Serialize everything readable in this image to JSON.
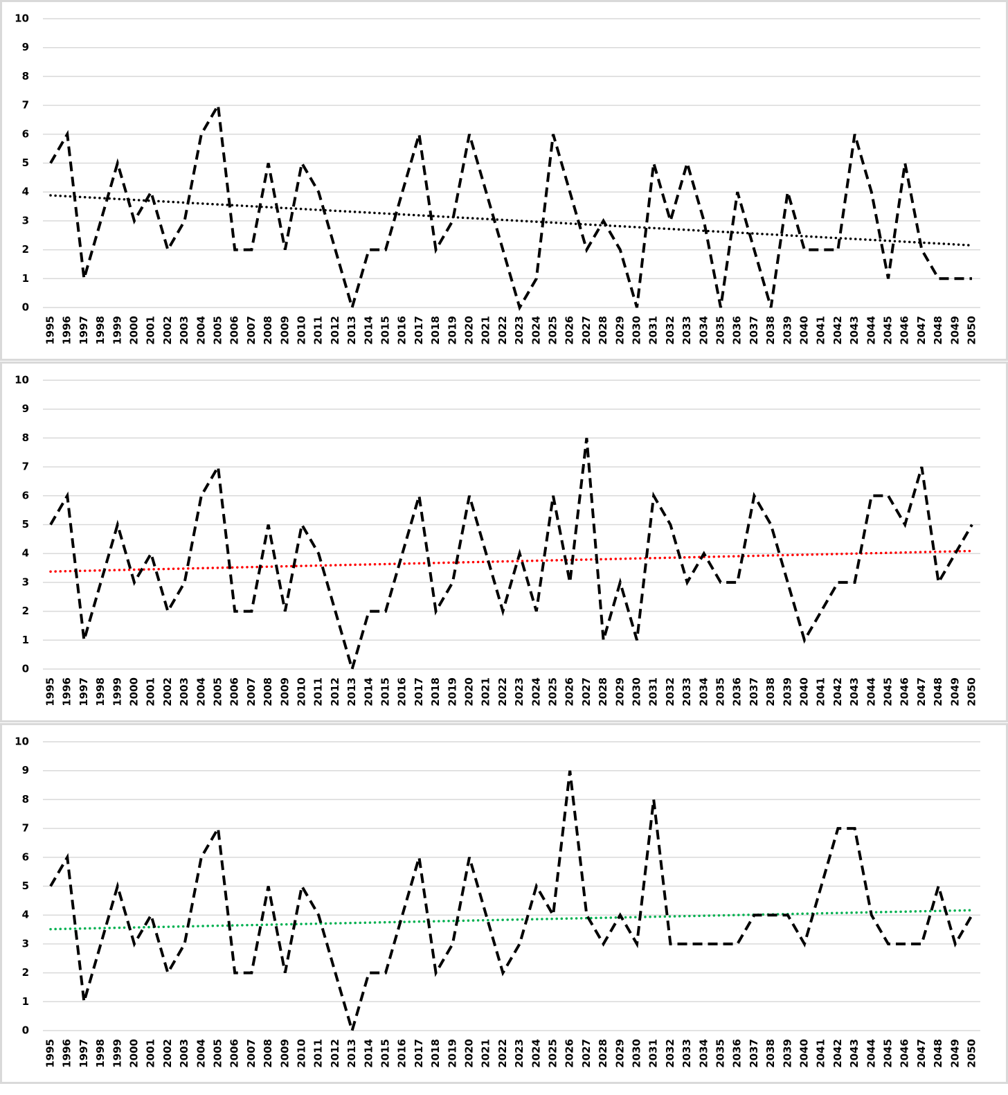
{
  "chart_data": [
    {
      "type": "line",
      "categories": [
        "1995",
        "1996",
        "1997",
        "1998",
        "1999",
        "2000",
        "2001",
        "2002",
        "2003",
        "2004",
        "2005",
        "2006",
        "2007",
        "2008",
        "2009",
        "2010",
        "2011",
        "2012",
        "2013",
        "2014",
        "2015",
        "2016",
        "2017",
        "2018",
        "2019",
        "2020",
        "2021",
        "2022",
        "2023",
        "2024",
        "2025",
        "2026",
        "2027",
        "2028",
        "2029",
        "2030",
        "2031",
        "2032",
        "2033",
        "2034",
        "2035",
        "2036",
        "2037",
        "2038",
        "2039",
        "2040",
        "2041",
        "2042",
        "2043",
        "2044",
        "2045",
        "2046",
        "2047",
        "2048",
        "2049",
        "2050"
      ],
      "series": [
        {
          "color": "#000000",
          "values": [
            5,
            6,
            1,
            3,
            5,
            3,
            4,
            2,
            3,
            6,
            7,
            2,
            2,
            5,
            2,
            5,
            4,
            2,
            0,
            2,
            2,
            4,
            6,
            2,
            3,
            6,
            4,
            2,
            0,
            1,
            6,
            4,
            2,
            3,
            2,
            0,
            5,
            3,
            5,
            3,
            0,
            4,
            2,
            0,
            4,
            2,
            2,
            2,
            6,
            4,
            1,
            5,
            2,
            1,
            1,
            1
          ]
        }
      ],
      "trendline": {
        "type": "linear",
        "color": "#000000"
      },
      "ylim": [
        0,
        10
      ],
      "yticks": [
        0,
        1,
        2,
        3,
        4,
        5,
        6,
        7,
        8,
        9,
        10
      ],
      "grid": true
    },
    {
      "type": "line",
      "categories": [
        "1995",
        "1996",
        "1997",
        "1998",
        "1999",
        "2000",
        "2001",
        "2002",
        "2003",
        "2004",
        "2005",
        "2006",
        "2007",
        "2008",
        "2009",
        "2010",
        "2011",
        "2012",
        "2013",
        "2014",
        "2015",
        "2016",
        "2017",
        "2018",
        "2019",
        "2020",
        "2021",
        "2022",
        "2023",
        "2024",
        "2025",
        "2026",
        "2027",
        "2028",
        "2029",
        "2030",
        "2031",
        "2032",
        "2033",
        "2034",
        "2035",
        "2036",
        "2037",
        "2038",
        "2039",
        "2040",
        "2041",
        "2042",
        "2043",
        "2044",
        "2045",
        "2046",
        "2047",
        "2048",
        "2049",
        "2050"
      ],
      "series": [
        {
          "color": "#000000",
          "values": [
            5,
            6,
            1,
            3,
            5,
            3,
            4,
            2,
            3,
            6,
            7,
            2,
            2,
            5,
            2,
            5,
            4,
            2,
            0,
            2,
            2,
            4,
            6,
            2,
            3,
            6,
            4,
            2,
            4,
            2,
            6,
            3,
            8,
            1,
            3,
            1,
            6,
            5,
            3,
            4,
            3,
            3,
            6,
            5,
            3,
            1,
            2,
            3,
            3,
            6,
            6,
            5,
            7,
            3,
            4,
            5
          ]
        }
      ],
      "trendline": {
        "type": "linear",
        "color": "#ff0000"
      },
      "ylim": [
        0,
        10
      ],
      "yticks": [
        0,
        1,
        2,
        3,
        4,
        5,
        6,
        7,
        8,
        9,
        10
      ],
      "grid": true
    },
    {
      "type": "line",
      "categories": [
        "1995",
        "1996",
        "1997",
        "1998",
        "1999",
        "2000",
        "2001",
        "2002",
        "2003",
        "2004",
        "2005",
        "2006",
        "2007",
        "2008",
        "2009",
        "2010",
        "2011",
        "2012",
        "2013",
        "2014",
        "2015",
        "2016",
        "2017",
        "2018",
        "2019",
        "2020",
        "2021",
        "2022",
        "2023",
        "2024",
        "2025",
        "2026",
        "2027",
        "2028",
        "2029",
        "2030",
        "2031",
        "2032",
        "2033",
        "2034",
        "2035",
        "2036",
        "2037",
        "2038",
        "2039",
        "2040",
        "2041",
        "2042",
        "2043",
        "2044",
        "2045",
        "2046",
        "2047",
        "2048",
        "2049",
        "2050"
      ],
      "series": [
        {
          "color": "#000000",
          "values": [
            5,
            6,
            1,
            3,
            5,
            3,
            4,
            2,
            3,
            6,
            7,
            2,
            2,
            5,
            2,
            5,
            4,
            2,
            0,
            2,
            2,
            4,
            6,
            2,
            3,
            6,
            4,
            2,
            3,
            5,
            4,
            9,
            4,
            3,
            4,
            3,
            8,
            3,
            3,
            3,
            3,
            3,
            4,
            4,
            4,
            3,
            5,
            7,
            7,
            4,
            3,
            3,
            3,
            5,
            3,
            4
          ]
        }
      ],
      "trendline": {
        "type": "linear",
        "color": "#00b050"
      },
      "ylim": [
        0,
        10
      ],
      "yticks": [
        0,
        1,
        2,
        3,
        4,
        5,
        6,
        7,
        8,
        9,
        10
      ],
      "grid": true
    }
  ]
}
